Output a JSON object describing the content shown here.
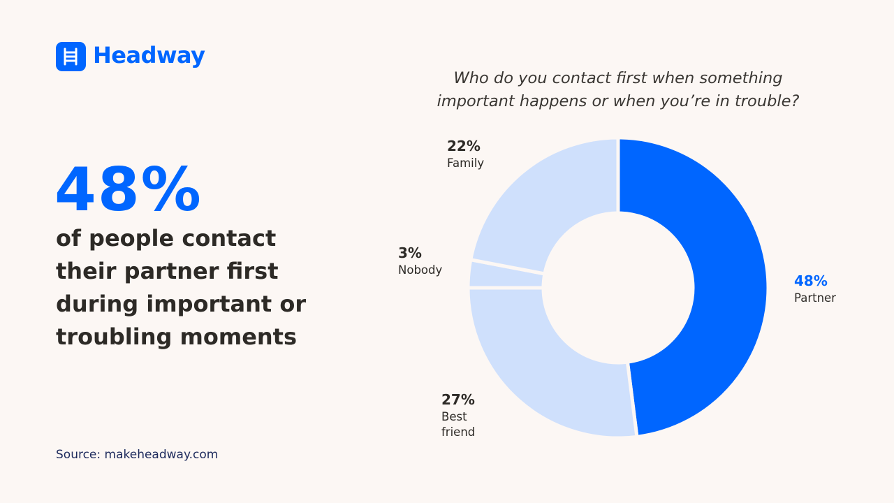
{
  "brand": "Headway",
  "headline": "48%",
  "statement": "of people contact their partner first during important or troubling moments",
  "source": "Source: makeheadway.com",
  "chart_data": {
    "type": "pie",
    "donut": true,
    "title": "Who do you contact first when something important happens or when you’re in trouble?",
    "categories": [
      "Partner",
      "Best friend",
      "Nobody",
      "Family"
    ],
    "values": [
      48,
      27,
      3,
      22
    ],
    "value_labels": [
      "48%",
      "27%",
      "3%",
      "22%"
    ],
    "colors": [
      "#0066ff",
      "#cfe0fc",
      "#cfe0fc",
      "#cfe0fc"
    ],
    "label_colors": [
      "#0066ff",
      "#2d2a26",
      "#2d2a26",
      "#2d2a26"
    ]
  }
}
